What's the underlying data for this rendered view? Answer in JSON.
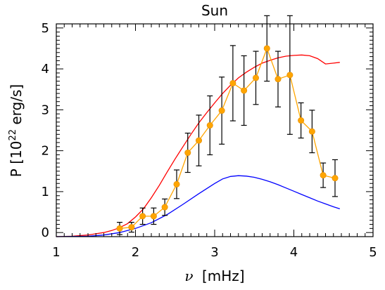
{
  "chart_data": {
    "type": "line",
    "title": "Sun",
    "xlabel_symbol": "ν",
    "xlabel_unit": "[mHz]",
    "ylabel_prefix": "P  [10",
    "ylabel_exp": "22",
    "ylabel_suffix": " erg/s]",
    "xlim": [
      1,
      5
    ],
    "ylim": [
      -0.1,
      5.1
    ],
    "x_ticks": [
      1,
      2,
      3,
      4,
      5
    ],
    "y_ticks": [
      0,
      1,
      2,
      3,
      4,
      5
    ],
    "grid": false,
    "colors": {
      "red": "#ff0000",
      "blue": "#0000ff",
      "orange": "#ffa500",
      "errorbar": "#000000"
    },
    "series": [
      {
        "color": "red",
        "style": "line",
        "x": [
          1.0,
          1.2,
          1.4,
          1.5,
          1.6,
          1.7,
          1.8,
          1.9,
          2.0,
          2.1,
          2.2,
          2.3,
          2.4,
          2.5,
          2.6,
          2.7,
          2.8,
          2.9,
          3.0,
          3.1,
          3.2,
          3.3,
          3.4,
          3.5,
          3.6,
          3.7,
          3.8,
          3.9,
          4.0,
          4.1,
          4.2,
          4.3,
          4.4,
          4.5,
          4.58
        ],
        "y": [
          -0.1,
          -0.09,
          -0.06,
          -0.03,
          0.0,
          0.05,
          0.12,
          0.22,
          0.38,
          0.58,
          0.85,
          1.15,
          1.48,
          1.8,
          2.1,
          2.4,
          2.68,
          2.93,
          3.17,
          3.4,
          3.6,
          3.78,
          3.92,
          4.04,
          4.14,
          4.21,
          4.27,
          4.31,
          4.33,
          4.34,
          4.32,
          4.25,
          4.12,
          4.14,
          4.16
        ]
      },
      {
        "color": "blue",
        "style": "line",
        "x": [
          1.0,
          1.4,
          1.6,
          1.8,
          2.0,
          2.2,
          2.4,
          2.6,
          2.8,
          3.0,
          3.1,
          3.2,
          3.3,
          3.4,
          3.5,
          3.6,
          3.7,
          3.8,
          3.9,
          4.0,
          4.1,
          4.2,
          4.3,
          4.4,
          4.5,
          4.58
        ],
        "y": [
          -0.1,
          -0.09,
          -0.06,
          0.0,
          0.1,
          0.24,
          0.44,
          0.69,
          0.95,
          1.2,
          1.31,
          1.37,
          1.39,
          1.38,
          1.35,
          1.3,
          1.24,
          1.17,
          1.09,
          1.01,
          0.93,
          0.85,
          0.77,
          0.7,
          0.63,
          0.58
        ]
      },
      {
        "color": "orange",
        "style": "points-with-errorbars",
        "x": [
          1.8,
          1.95,
          2.09,
          2.23,
          2.37,
          2.52,
          2.66,
          2.8,
          2.94,
          3.09,
          3.23,
          3.37,
          3.52,
          3.66,
          3.8,
          3.95,
          4.09,
          4.23,
          4.37,
          4.52
        ],
        "y": [
          0.1,
          0.13,
          0.4,
          0.4,
          0.62,
          1.18,
          1.95,
          2.25,
          2.62,
          2.98,
          3.65,
          3.47,
          3.78,
          4.5,
          3.75,
          3.85,
          2.74,
          2.47,
          1.4,
          1.33
        ],
        "err": [
          0.15,
          0.12,
          0.2,
          0.2,
          0.2,
          0.35,
          0.48,
          0.62,
          0.72,
          0.82,
          0.92,
          0.85,
          0.65,
          0.8,
          0.68,
          1.45,
          0.43,
          0.52,
          0.3,
          0.45
        ]
      }
    ]
  }
}
